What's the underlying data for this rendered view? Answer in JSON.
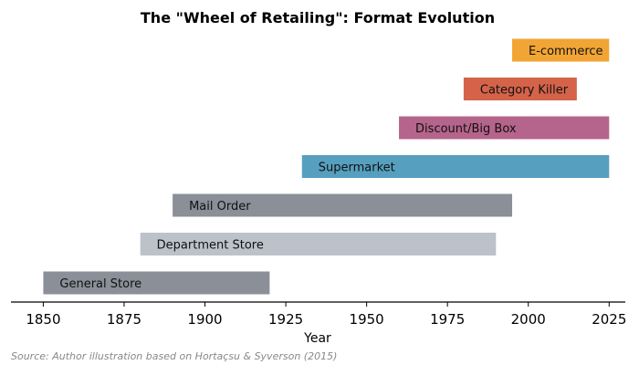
{
  "chart_data": {
    "type": "bar",
    "orientation": "horizontal-range",
    "title": "The \"Wheel of Retailing\": Format Evolution",
    "xlabel": "Year",
    "ylabel": "",
    "xlim": [
      1840,
      2030
    ],
    "xticks": [
      1850,
      1875,
      1900,
      1925,
      1950,
      1975,
      2000,
      2025
    ],
    "grid": false,
    "bars": [
      {
        "label": "General Store",
        "start": 1850,
        "end": 1920,
        "color": "#8a8f98"
      },
      {
        "label": "Department Store",
        "start": 1880,
        "end": 1990,
        "color": "#bcc2ca"
      },
      {
        "label": "Mail Order",
        "start": 1890,
        "end": 1995,
        "color": "#8a8f98"
      },
      {
        "label": "Supermarket",
        "start": 1930,
        "end": 2025,
        "color": "#569fbf"
      },
      {
        "label": "Discount/Big Box",
        "start": 1960,
        "end": 2025,
        "color": "#b5648b"
      },
      {
        "label": "Category Killer",
        "start": 1980,
        "end": 2015,
        "color": "#d4634a"
      },
      {
        "label": "E-commerce",
        "start": 1995,
        "end": 2025,
        "color": "#f2a534"
      }
    ],
    "source": "Source: Author illustration based on Hortaçsu & Syverson (2015)"
  }
}
